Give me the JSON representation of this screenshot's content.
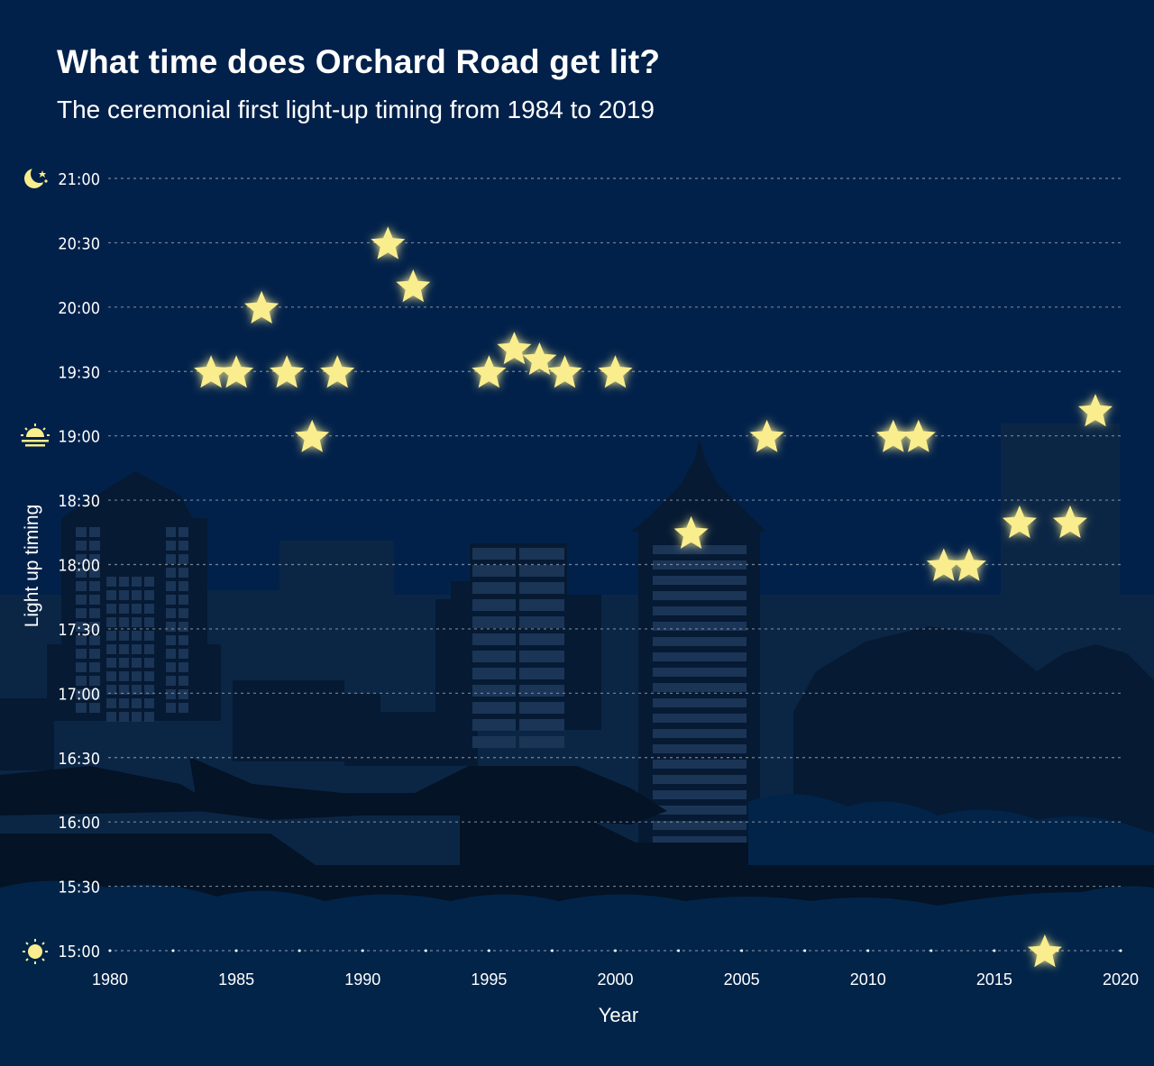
{
  "title": "What time does Orchard Road get lit?",
  "subtitle": "The ceremonial first light-up timing from 1984 to 2019",
  "colors": {
    "background": "#02214a",
    "star": "#f9ed8d",
    "grid": "#9aa6b6",
    "text": "#ffffff",
    "skyline_far": "#0b2645",
    "skyline_mid": "#061a33",
    "skyline_near": "#041325",
    "bushes": "#022449"
  },
  "icons": {
    "top_time": "moon-stars-icon",
    "mid_time": "sunset-icon",
    "bottom_time": "sun-icon"
  },
  "chart_data": {
    "type": "scatter",
    "marker": "star",
    "xlabel": "Year",
    "ylabel": "Light up timing",
    "xlim": [
      1980,
      2020
    ],
    "xticks": [
      1980,
      1985,
      1990,
      1995,
      2000,
      2005,
      2010,
      2015,
      2020
    ],
    "ylim": [
      "15:00",
      "21:00"
    ],
    "yticks": [
      "21:00",
      "20:30",
      "20:00",
      "19:30",
      "19:00",
      "18:30",
      "18:00",
      "17:30",
      "17:00",
      "16:30",
      "16:00",
      "15:30",
      "15:00"
    ],
    "grid": true,
    "points": [
      {
        "x": 1984,
        "y": "19:30"
      },
      {
        "x": 1985,
        "y": "19:30"
      },
      {
        "x": 1986,
        "y": "20:00"
      },
      {
        "x": 1987,
        "y": "19:30"
      },
      {
        "x": 1988,
        "y": "19:00"
      },
      {
        "x": 1989,
        "y": "19:30"
      },
      {
        "x": 1991,
        "y": "20:30"
      },
      {
        "x": 1992,
        "y": "20:10"
      },
      {
        "x": 1995,
        "y": "19:30"
      },
      {
        "x": 1996,
        "y": "19:41"
      },
      {
        "x": 1997,
        "y": "19:36"
      },
      {
        "x": 1998,
        "y": "19:30"
      },
      {
        "x": 2000,
        "y": "19:30"
      },
      {
        "x": 2003,
        "y": "18:15"
      },
      {
        "x": 2006,
        "y": "19:00"
      },
      {
        "x": 2011,
        "y": "19:00"
      },
      {
        "x": 2012,
        "y": "19:00"
      },
      {
        "x": 2013,
        "y": "18:00"
      },
      {
        "x": 2014,
        "y": "18:00"
      },
      {
        "x": 2016,
        "y": "18:20"
      },
      {
        "x": 2018,
        "y": "18:20"
      },
      {
        "x": 2017,
        "y": "15:00"
      },
      {
        "x": 2019,
        "y": "19:12"
      }
    ]
  }
}
